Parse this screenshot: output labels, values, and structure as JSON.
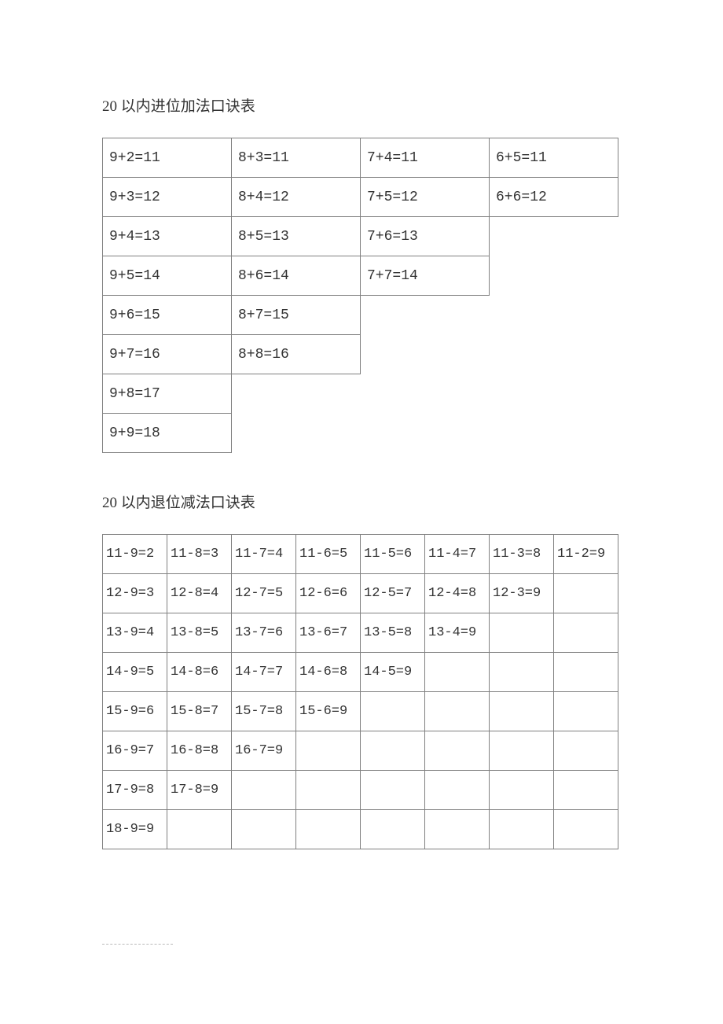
{
  "titles": {
    "addition": "20 以内进位加法口诀表",
    "subtraction": "20 以内退位减法口诀表"
  },
  "addition_table": {
    "columns": 4,
    "cell_font_size": 18,
    "border_color": "#808080",
    "text_color": "#333333",
    "rows": [
      [
        "9+2=11",
        "8+3=11",
        "7+4=11",
        "6+5=11"
      ],
      [
        "9+3=12",
        "8+4=12",
        "7+5=12",
        "6+6=12"
      ],
      [
        "9+4=13",
        "8+5=13",
        "7+6=13",
        null
      ],
      [
        "9+5=14",
        "8+6=14",
        "7+7=14",
        null
      ],
      [
        "9+6=15",
        "8+7=15",
        null,
        null
      ],
      [
        "9+7=16",
        "8+8=16",
        null,
        null
      ],
      [
        "9+8=17",
        null,
        null,
        null
      ],
      [
        "9+9=18",
        null,
        null,
        null
      ]
    ]
  },
  "subtraction_table": {
    "columns": 8,
    "cell_font_size": 17,
    "border_color": "#808080",
    "text_color": "#333333",
    "rows": [
      [
        "11-9=2",
        "11-8=3",
        "11-7=4",
        "11-6=5",
        "11-5=6",
        "11-4=7",
        "11-3=8",
        "11-2=9"
      ],
      [
        "12-9=3",
        "12-8=4",
        "12-7=5",
        "12-6=6",
        "12-5=7",
        "12-4=8",
        "12-3=9",
        ""
      ],
      [
        "13-9=4",
        "13-8=5",
        "13-7=6",
        "13-6=7",
        "13-5=8",
        "13-4=9",
        "",
        ""
      ],
      [
        "14-9=5",
        "14-8=6",
        "14-7=7",
        "14-6=8",
        "14-5=9",
        "",
        "",
        ""
      ],
      [
        "15-9=6",
        "15-8=7",
        "15-7=8",
        "15-6=9",
        "",
        "",
        "",
        ""
      ],
      [
        "16-9=7",
        "16-8=8",
        "16-7=9",
        "",
        "",
        "",
        "",
        ""
      ],
      [
        "17-9=8",
        "17-8=9",
        "",
        "",
        "",
        "",
        "",
        ""
      ],
      [
        "18-9=9",
        "",
        "",
        "",
        "",
        "",
        "",
        ""
      ]
    ]
  }
}
